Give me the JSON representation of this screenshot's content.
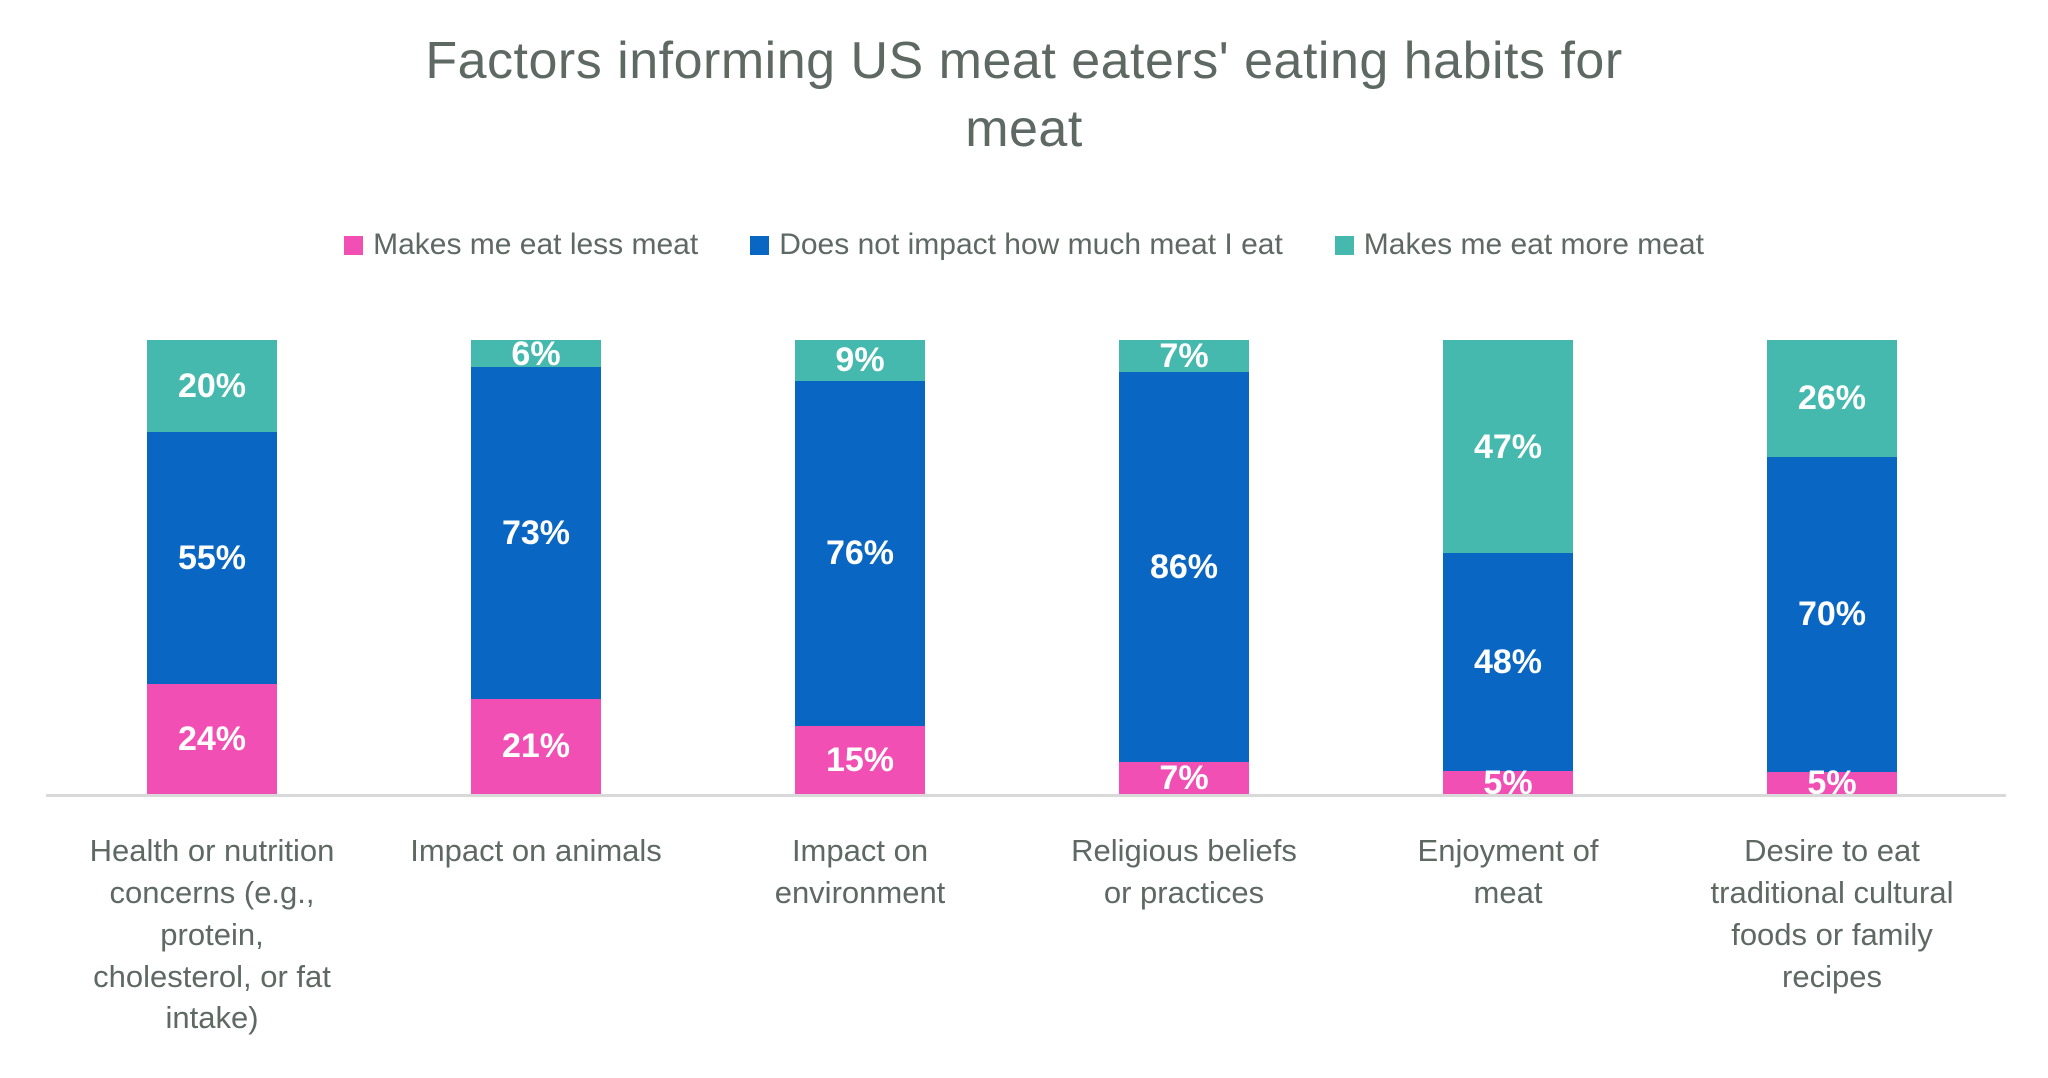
{
  "title": "Factors informing US meat eaters' eating habits for\nmeat",
  "colors": {
    "less_meat_pink": "#F24FB4",
    "no_impact_blue": "#0A66C3",
    "more_meat_teal": "#46B9AE",
    "axis_line": "#D9D9D9",
    "text_gray": "#5E6963",
    "bar_label_white": "#FFFFFF"
  },
  "legend": {
    "items": [
      {
        "label": "Makes me eat less meat",
        "color": "#F24FB4"
      },
      {
        "label": "Does not impact how much meat I eat",
        "color": "#0A66C3"
      },
      {
        "label": "Makes me eat more meat",
        "color": "#46B9AE"
      }
    ]
  },
  "chart_data": {
    "type": "bar",
    "stacked": true,
    "normalized_to_full_height": true,
    "unit": "percent",
    "title": "Factors informing US meat eaters' eating habits for meat",
    "xlabel": "",
    "ylabel": "",
    "ylim": [
      0,
      100
    ],
    "grid": false,
    "y_axis_visible": false,
    "legend_position": "top",
    "categories": [
      "Health or nutrition\nconcerns (e.g.,\nprotein,\ncholesterol, or fat\nintake)",
      "Impact on animals",
      "Impact on\nenvironment",
      "Religious beliefs\nor practices",
      "Enjoyment of\nmeat",
      "Desire to eat\ntraditional cultural\nfoods or family\nrecipes"
    ],
    "series": [
      {
        "name": "Makes me eat less meat",
        "color": "#F24FB4",
        "stack_position": "bottom",
        "values": [
          24,
          21,
          15,
          7,
          5,
          5
        ],
        "labels": [
          "24%",
          "21%",
          "15%",
          "7%",
          "5%",
          "5%"
        ]
      },
      {
        "name": "Does not impact how much meat I eat",
        "color": "#0A66C3",
        "stack_position": "middle",
        "values": [
          55,
          73,
          76,
          86,
          48,
          70
        ],
        "labels": [
          "55%",
          "73%",
          "76%",
          "86%",
          "48%",
          "70%"
        ]
      },
      {
        "name": "Makes me eat more meat",
        "color": "#46B9AE",
        "stack_position": "top",
        "values": [
          20,
          6,
          9,
          7,
          47,
          26
        ],
        "labels": [
          "20%",
          "6%",
          "9%",
          "7%",
          "47%",
          "26%"
        ]
      }
    ]
  }
}
